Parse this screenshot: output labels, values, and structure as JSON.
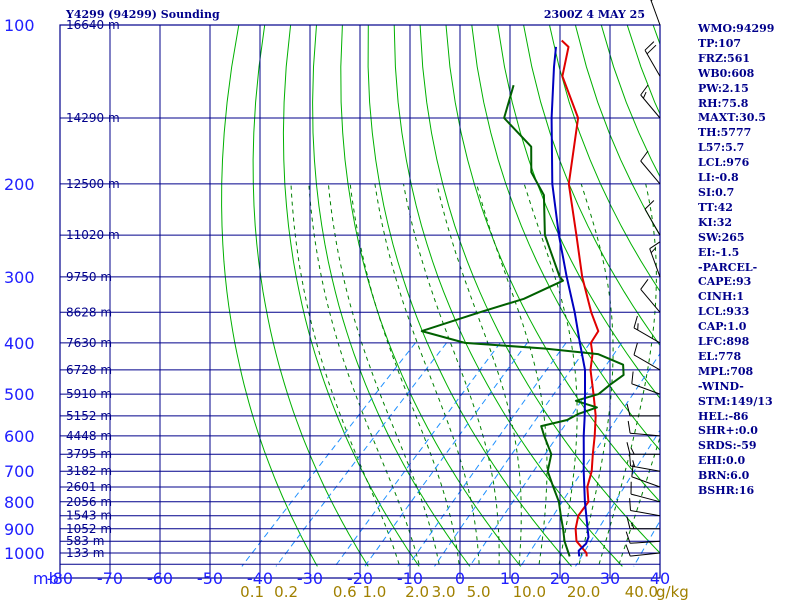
{
  "header": {
    "title": "Y4299 (94299) Sounding",
    "timestamp": "2300Z  4 MAY 25"
  },
  "indices": [
    "WMO:94299",
    "TP:107",
    "FRZ:561",
    "WB0:608",
    "PW:2.15",
    "RH:75.8",
    "MAXT:30.5",
    "TH:5777",
    "L57:5.7",
    "LCL:976",
    "LI:-0.8",
    "SI:0.7",
    "TT:42",
    "KI:32",
    "SW:265",
    "EI:-1.5",
    "-PARCEL-",
    "CAPE:93",
    "CINH:1",
    "LCL:933",
    "CAP:1.0",
    "LFC:898",
    "EL:778",
    "MPL:708",
    "-WIND-",
    "STM:149/13",
    "HEL:-86",
    "SHR+:0.0",
    "SRDS:-59",
    "EHI:0.0",
    "BRN:6.0",
    "BSHR:16"
  ],
  "colors": {
    "grid": "#00008b",
    "dry_adiabat": "#00b000",
    "moist_adiabat": "#008000",
    "mixing_ratio": "#1e90ff",
    "temperature": "#e00000",
    "dewpoint": "#006000",
    "parcel": "#0000c0"
  },
  "chart_data": {
    "type": "line",
    "diagram": "skew-T log-P",
    "title": "Y4299 (94299) Sounding",
    "pressure_unit": "mb",
    "mixing_ratio_unit": "g/kg",
    "pressure_levels": [
      100,
      200,
      300,
      400,
      500,
      600,
      700,
      800,
      900,
      1000
    ],
    "temperature_ticks": [
      -80,
      -70,
      -60,
      -50,
      -40,
      -30,
      -20,
      -10,
      0,
      10,
      20,
      30,
      40
    ],
    "mixing_ratio_ticks": [
      "0.1",
      "0.2",
      "0.6",
      "1.0",
      "2.0",
      "3.0",
      "5.0",
      "10.0",
      "20.0",
      "40.0"
    ],
    "height_labels": [
      {
        "p": 100,
        "label": "16640 m"
      },
      {
        "p": 150,
        "label": "14290 m"
      },
      {
        "p": 200,
        "label": "12500 m"
      },
      {
        "p": 250,
        "label": "11020 m"
      },
      {
        "p": 300,
        "label": "9750 m"
      },
      {
        "p": 350,
        "label": "8628 m"
      },
      {
        "p": 400,
        "label": "7630 m"
      },
      {
        "p": 450,
        "label": "6728 m"
      },
      {
        "p": 500,
        "label": "5910 m"
      },
      {
        "p": 550,
        "label": "5152 m"
      },
      {
        "p": 600,
        "label": "4448 m"
      },
      {
        "p": 650,
        "label": "3795 m"
      },
      {
        "p": 700,
        "label": "3182 m"
      },
      {
        "p": 750,
        "label": "2601 m"
      },
      {
        "p": 800,
        "label": "2056 m"
      },
      {
        "p": 850,
        "label": "1543 m"
      },
      {
        "p": 900,
        "label": "1052 m"
      },
      {
        "p": 950,
        "label": "583 m"
      },
      {
        "p": 1000,
        "label": "133 m"
      }
    ],
    "series": [
      {
        "key": "temperature",
        "points": [
          [
            1015,
            26
          ],
          [
            1000,
            25.3
          ],
          [
            950,
            21
          ],
          [
            900,
            18.4
          ],
          [
            850,
            16.4
          ],
          [
            800,
            15.7
          ],
          [
            750,
            12.6
          ],
          [
            700,
            10.4
          ],
          [
            650,
            7.3
          ],
          [
            600,
            4.1
          ],
          [
            550,
            0.4
          ],
          [
            500,
            -4.3
          ],
          [
            450,
            -9.6
          ],
          [
            420,
            -12.3
          ],
          [
            400,
            -14.8
          ],
          [
            380,
            -15.6
          ],
          [
            350,
            -20.7
          ],
          [
            300,
            -29.4
          ],
          [
            250,
            -38.7
          ],
          [
            200,
            -50.2
          ],
          [
            150,
            -61.2
          ],
          [
            125,
            -72.5
          ],
          [
            110,
            -77
          ],
          [
            107,
            -79.6
          ]
        ]
      },
      {
        "key": "dewpoint",
        "points": [
          [
            1015,
            22.6
          ],
          [
            1000,
            21.7
          ],
          [
            950,
            18.6
          ],
          [
            900,
            15.9
          ],
          [
            850,
            12.9
          ],
          [
            800,
            9.8
          ],
          [
            750,
            5.8
          ],
          [
            700,
            1.6
          ],
          [
            650,
            -1
          ],
          [
            600,
            -6
          ],
          [
            575,
            -8.5
          ],
          [
            560,
            -4.5
          ],
          [
            545,
            -3.4
          ],
          [
            530,
            -1
          ],
          [
            515,
            -6.5
          ],
          [
            500,
            -3.3
          ],
          [
            480,
            -2.8
          ],
          [
            460,
            -2
          ],
          [
            440,
            -4.1
          ],
          [
            420,
            -11.2
          ],
          [
            410,
            -23
          ],
          [
            400,
            -40
          ],
          [
            380,
            -50.9
          ],
          [
            350,
            -43
          ],
          [
            330,
            -36.8
          ],
          [
            305,
            -32.5
          ],
          [
            300,
            -33.9
          ],
          [
            250,
            -45
          ],
          [
            210,
            -53
          ],
          [
            190,
            -60
          ],
          [
            170,
            -65
          ],
          [
            150,
            -76
          ],
          [
            130,
            -80.5
          ]
        ]
      },
      {
        "key": "parcel",
        "points": [
          [
            1015,
            24.5
          ],
          [
            990,
            23.3
          ],
          [
            960,
            23.4
          ],
          [
            933,
            22.6
          ],
          [
            900,
            20.8
          ],
          [
            850,
            18
          ],
          [
            800,
            15
          ],
          [
            750,
            12
          ],
          [
            700,
            8.8
          ],
          [
            650,
            5.5
          ],
          [
            600,
            1.9
          ],
          [
            550,
            -1.8
          ],
          [
            500,
            -6
          ],
          [
            450,
            -10.7
          ],
          [
            400,
            -17
          ],
          [
            350,
            -24
          ],
          [
            300,
            -32.5
          ],
          [
            250,
            -42.2
          ],
          [
            200,
            -53.5
          ],
          [
            150,
            -66.5
          ],
          [
            120,
            -76
          ],
          [
            110,
            -79.5
          ]
        ]
      }
    ],
    "wind_barbs": [
      {
        "p": 1000,
        "dir": 264,
        "spd": 14
      },
      {
        "p": 950,
        "dir": 266,
        "spd": 12
      },
      {
        "p": 900,
        "dir": 270,
        "spd": 15
      },
      {
        "p": 850,
        "dir": 280,
        "spd": 14
      },
      {
        "p": 800,
        "dir": 285,
        "spd": 10
      },
      {
        "p": 750,
        "dir": 290,
        "spd": 12
      },
      {
        "p": 700,
        "dir": 280,
        "spd": 18
      },
      {
        "p": 650,
        "dir": 270,
        "spd": 15
      },
      {
        "p": 600,
        "dir": 275,
        "spd": 12
      },
      {
        "p": 550,
        "dir": 270,
        "spd": 10
      },
      {
        "p": 500,
        "dir": 290,
        "spd": 12
      },
      {
        "p": 450,
        "dir": 300,
        "spd": 14
      },
      {
        "p": 400,
        "dir": 300,
        "spd": 18
      },
      {
        "p": 350,
        "dir": 320,
        "spd": 12
      },
      {
        "p": 300,
        "dir": 340,
        "spd": 15
      },
      {
        "p": 250,
        "dir": 330,
        "spd": 14
      },
      {
        "p": 200,
        "dir": 320,
        "spd": 12
      },
      {
        "p": 150,
        "dir": 320,
        "spd": 15
      },
      {
        "p": 125,
        "dir": 330,
        "spd": 20
      },
      {
        "p": 100,
        "dir": 340,
        "spd": 15
      }
    ]
  }
}
